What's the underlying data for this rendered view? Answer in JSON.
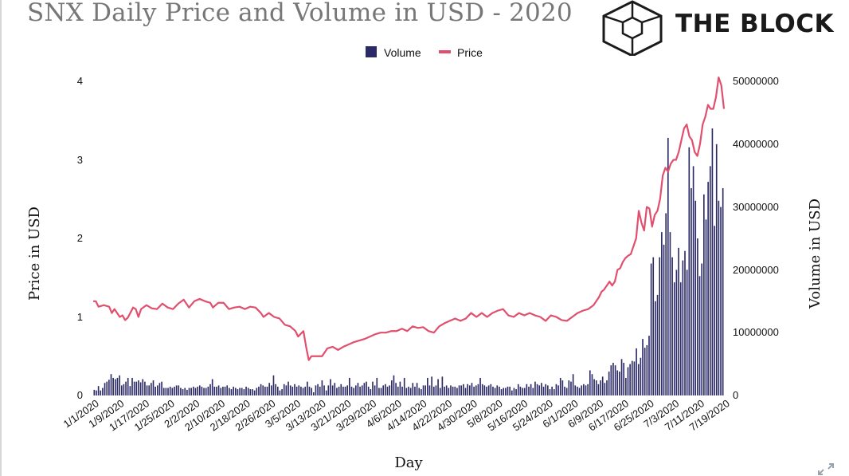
{
  "chart_data": {
    "type": "bar+line",
    "title": "SNX Daily Price and Volume in USD - 2020",
    "xlabel": "Day",
    "ylabel_left": "Price in USD",
    "ylabel_right": "Volume in USD",
    "legend": [
      "Volume",
      "Price"
    ],
    "legend_position": "top-center",
    "colors": {
      "volume": "#2b2a66",
      "price": "#e0506e"
    },
    "ylim_left": [
      0,
      4
    ],
    "yticks_left": [
      "0",
      "1",
      "2",
      "3",
      "4"
    ],
    "ylim_right": [
      0,
      50000000
    ],
    "yticks_right": [
      "0",
      "10000000",
      "20000000",
      "30000000",
      "40000000",
      "50000000"
    ],
    "xticks": [
      "1/1/2020",
      "1/9/2020",
      "1/17/2020",
      "1/25/2020",
      "2/2/2020",
      "2/10/2020",
      "2/18/2020",
      "2/26/2020",
      "3/5/2020",
      "3/13/2020",
      "3/21/2020",
      "3/29/2020",
      "4/6/2020",
      "4/14/2020",
      "4/22/2020",
      "4/30/2020",
      "5/8/2020",
      "5/16/2020",
      "5/24/2020",
      "6/1/2020",
      "6/9/2020",
      "6/17/2020",
      "6/25/2020",
      "7/3/2020",
      "7/11/2020",
      "7/19/2020"
    ],
    "start_date": "1/1/2020",
    "price_points": [
      [
        0,
        1.2
      ],
      [
        1,
        1.2
      ],
      [
        2,
        1.13
      ],
      [
        4,
        1.15
      ],
      [
        6,
        1.13
      ],
      [
        7,
        1.05
      ],
      [
        8,
        1.1
      ],
      [
        9,
        1.05
      ],
      [
        10,
        1.0
      ],
      [
        11,
        1.02
      ],
      [
        12,
        0.96
      ],
      [
        13,
        0.99
      ],
      [
        15,
        1.12
      ],
      [
        16,
        1.1
      ],
      [
        17,
        1.0
      ],
      [
        18,
        1.1
      ],
      [
        20,
        1.15
      ],
      [
        22,
        1.11
      ],
      [
        24,
        1.1
      ],
      [
        26,
        1.17
      ],
      [
        28,
        1.12
      ],
      [
        30,
        1.1
      ],
      [
        32,
        1.17
      ],
      [
        34,
        1.22
      ],
      [
        36,
        1.12
      ],
      [
        38,
        1.2
      ],
      [
        40,
        1.23
      ],
      [
        42,
        1.2
      ],
      [
        44,
        1.18
      ],
      [
        45,
        1.12
      ],
      [
        47,
        1.18
      ],
      [
        49,
        1.18
      ],
      [
        51,
        1.1
      ],
      [
        53,
        1.12
      ],
      [
        55,
        1.13
      ],
      [
        57,
        1.1
      ],
      [
        59,
        1.13
      ],
      [
        61,
        1.12
      ],
      [
        63,
        1.05
      ],
      [
        64,
        1.0
      ],
      [
        66,
        1.05
      ],
      [
        68,
        1.0
      ],
      [
        70,
        0.98
      ],
      [
        72,
        0.9
      ],
      [
        74,
        0.88
      ],
      [
        76,
        0.82
      ],
      [
        77,
        0.75
      ],
      [
        79,
        0.82
      ],
      [
        80,
        0.62
      ],
      [
        81,
        0.45
      ],
      [
        82,
        0.5
      ],
      [
        84,
        0.5
      ],
      [
        86,
        0.5
      ],
      [
        88,
        0.6
      ],
      [
        90,
        0.62
      ],
      [
        92,
        0.58
      ],
      [
        94,
        0.62
      ],
      [
        96,
        0.65
      ],
      [
        98,
        0.68
      ],
      [
        100,
        0.7
      ],
      [
        102,
        0.72
      ],
      [
        104,
        0.75
      ],
      [
        106,
        0.78
      ],
      [
        108,
        0.8
      ],
      [
        110,
        0.8
      ],
      [
        112,
        0.82
      ],
      [
        114,
        0.82
      ],
      [
        116,
        0.85
      ],
      [
        118,
        0.82
      ],
      [
        120,
        0.88
      ],
      [
        122,
        0.86
      ],
      [
        124,
        0.87
      ],
      [
        126,
        0.82
      ],
      [
        128,
        0.8
      ],
      [
        130,
        0.88
      ],
      [
        132,
        0.92
      ],
      [
        134,
        0.95
      ],
      [
        136,
        0.98
      ],
      [
        138,
        0.95
      ],
      [
        140,
        0.98
      ],
      [
        142,
        1.05
      ],
      [
        144,
        1.0
      ],
      [
        146,
        1.05
      ],
      [
        148,
        1.0
      ],
      [
        150,
        1.05
      ],
      [
        152,
        1.08
      ],
      [
        154,
        1.1
      ],
      [
        156,
        1.02
      ],
      [
        158,
        1.0
      ],
      [
        160,
        1.05
      ],
      [
        162,
        1.02
      ],
      [
        164,
        1.05
      ],
      [
        166,
        1.02
      ],
      [
        168,
        1.0
      ],
      [
        170,
        0.95
      ],
      [
        172,
        1.02
      ],
      [
        174,
        1.0
      ],
      [
        176,
        0.96
      ],
      [
        178,
        0.95
      ],
      [
        180,
        1.0
      ],
      [
        182,
        1.05
      ],
      [
        184,
        1.08
      ],
      [
        186,
        1.1
      ],
      [
        188,
        1.15
      ],
      [
        190,
        1.25
      ],
      [
        191,
        1.32
      ],
      [
        192,
        1.35
      ],
      [
        193,
        1.4
      ],
      [
        194,
        1.45
      ],
      [
        195,
        1.4
      ],
      [
        196,
        1.45
      ],
      [
        197,
        1.6
      ],
      [
        198,
        1.62
      ],
      [
        199,
        1.7
      ],
      [
        200,
        1.75
      ],
      [
        201,
        1.78
      ],
      [
        202,
        1.8
      ],
      [
        203,
        1.9
      ],
      [
        204,
        2.0
      ],
      [
        205,
        2.35
      ],
      [
        206,
        2.2
      ],
      [
        207,
        2.1
      ],
      [
        208,
        2.4
      ],
      [
        209,
        2.38
      ],
      [
        210,
        2.15
      ],
      [
        211,
        2.3
      ],
      [
        212,
        2.35
      ],
      [
        213,
        2.5
      ],
      [
        214,
        2.8
      ],
      [
        215,
        2.9
      ],
      [
        216,
        2.85
      ],
      [
        217,
        2.95
      ],
      [
        218,
        3.0
      ],
      [
        219,
        3.0
      ],
      [
        220,
        3.1
      ],
      [
        221,
        3.25
      ],
      [
        222,
        3.4
      ],
      [
        223,
        3.45
      ],
      [
        224,
        3.3
      ],
      [
        225,
        3.25
      ],
      [
        226,
        3.1
      ],
      [
        227,
        3.05
      ],
      [
        228,
        3.2
      ],
      [
        229,
        3.45
      ],
      [
        230,
        3.55
      ],
      [
        231,
        3.7
      ],
      [
        232,
        3.65
      ],
      [
        233,
        3.65
      ],
      [
        234,
        3.8
      ],
      [
        235,
        4.05
      ],
      [
        236,
        3.95
      ],
      [
        237,
        3.65
      ]
    ],
    "volume_values": [
      900000,
      800000,
      1500000,
      800000,
      1200000,
      2000000,
      2200000,
      2500000,
      3400000,
      2800000,
      2600000,
      2800000,
      3200000,
      1600000,
      1800000,
      2200000,
      2800000,
      1500000,
      2800000,
      2200000,
      2200000,
      2400000,
      2100000,
      2600000,
      2200000,
      1600000,
      1600000,
      2000000,
      2400000,
      1400000,
      1600000,
      2000000,
      2200000,
      1200000,
      1200000,
      1200000,
      1400000,
      1200000,
      1400000,
      1600000,
      1600000,
      1200000,
      1000000,
      1200000,
      900000,
      1200000,
      1200000,
      1400000,
      1200000,
      1400000,
      1600000,
      1400000,
      1200000,
      1200000,
      1400000,
      1800000,
      2600000,
      1400000,
      1400000,
      1600000,
      1200000,
      1400000,
      1400000,
      1600000,
      1200000,
      1000000,
      1400000,
      1200000,
      1000000,
      1200000,
      1200000,
      1000000,
      1400000,
      1200000,
      1000000,
      1000000,
      800000,
      1200000,
      1400000,
      1800000,
      1600000,
      1400000,
      1400000,
      2000000,
      1600000,
      3200000,
      1800000,
      1400000,
      800000,
      1000000,
      1800000,
      1600000,
      2200000,
      1600000,
      1400000,
      1800000,
      1400000,
      1600000,
      1400000,
      1200000,
      1400000,
      2200000,
      1400000,
      1200000,
      500000,
      1600000,
      1800000,
      1400000,
      2400000,
      1600000,
      800000,
      1600000,
      2600000,
      1600000,
      2000000,
      1200000,
      1400000,
      1800000,
      1400000,
      1400000,
      1600000,
      2800000,
      1400000,
      1200000,
      1600000,
      2000000,
      1400000,
      1600000,
      2000000,
      2200000,
      1400000,
      1000000,
      2200000,
      1600000,
      2800000,
      1200000,
      1200000,
      1600000,
      1800000,
      1400000,
      1600000,
      2400000,
      3200000,
      2000000,
      1400000,
      2200000,
      1400000,
      2800000,
      1200000,
      1400000,
      1200000,
      2000000,
      1400000,
      2000000,
      1200000,
      1000000,
      1600000,
      1600000,
      2800000,
      1600000,
      3000000,
      1400000,
      1600000,
      2600000,
      1200000,
      3000000,
      1400000,
      1600000,
      1200000,
      1600000,
      1400000,
      1400000,
      1200000,
      1600000,
      1600000,
      1800000,
      1200000,
      1800000,
      1600000,
      2000000,
      1400000,
      1600000,
      1800000,
      2800000,
      1800000,
      1600000,
      1400000,
      1600000,
      1800000,
      1400000,
      1200000,
      1600000,
      1400000,
      1000000,
      1200000,
      1200000,
      1400000,
      1400000,
      800000,
      1200000,
      1000000,
      1800000,
      1400000,
      1200000,
      1200000,
      1800000,
      1400000,
      1800000,
      1200000,
      2200000,
      1800000,
      1600000,
      2000000,
      1400000,
      1800000,
      1600000,
      1000000,
      1400000,
      1000000,
      1800000,
      1600000,
      2800000,
      2400000,
      1400000,
      1200000,
      2400000,
      2200000,
      3400000,
      1600000,
      1400000,
      1200000,
      1600000,
      1800000,
      1600000,
      1800000,
      4000000,
      3400000,
      2600000,
      2400000,
      1800000,
      2400000,
      3000000,
      2000000,
      2400000,
      3800000,
      4800000,
      5200000,
      4800000,
      4000000,
      3800000,
      5800000,
      5200000,
      2800000,
      4500000,
      5000000,
      5500000,
      5400000,
      7500000,
      5000000,
      6000000,
      9000000,
      7600000,
      8000000,
      9500000,
      21000000,
      22000000,
      15000000,
      16000000,
      22000000,
      26000000,
      24000000,
      29000000,
      41000000,
      26000000,
      22000000,
      18000000,
      20000000,
      23500000,
      18000000,
      21500000,
      23000000,
      20000000,
      39500000,
      33000000,
      36500000,
      31000000,
      25000000,
      19000000,
      21000000,
      32000000,
      28000000,
      34000000,
      36500000,
      42500000,
      27000000,
      40000000,
      31000000,
      30000000,
      33000000
    ]
  },
  "brand": {
    "name": "THE BLOCK"
  }
}
